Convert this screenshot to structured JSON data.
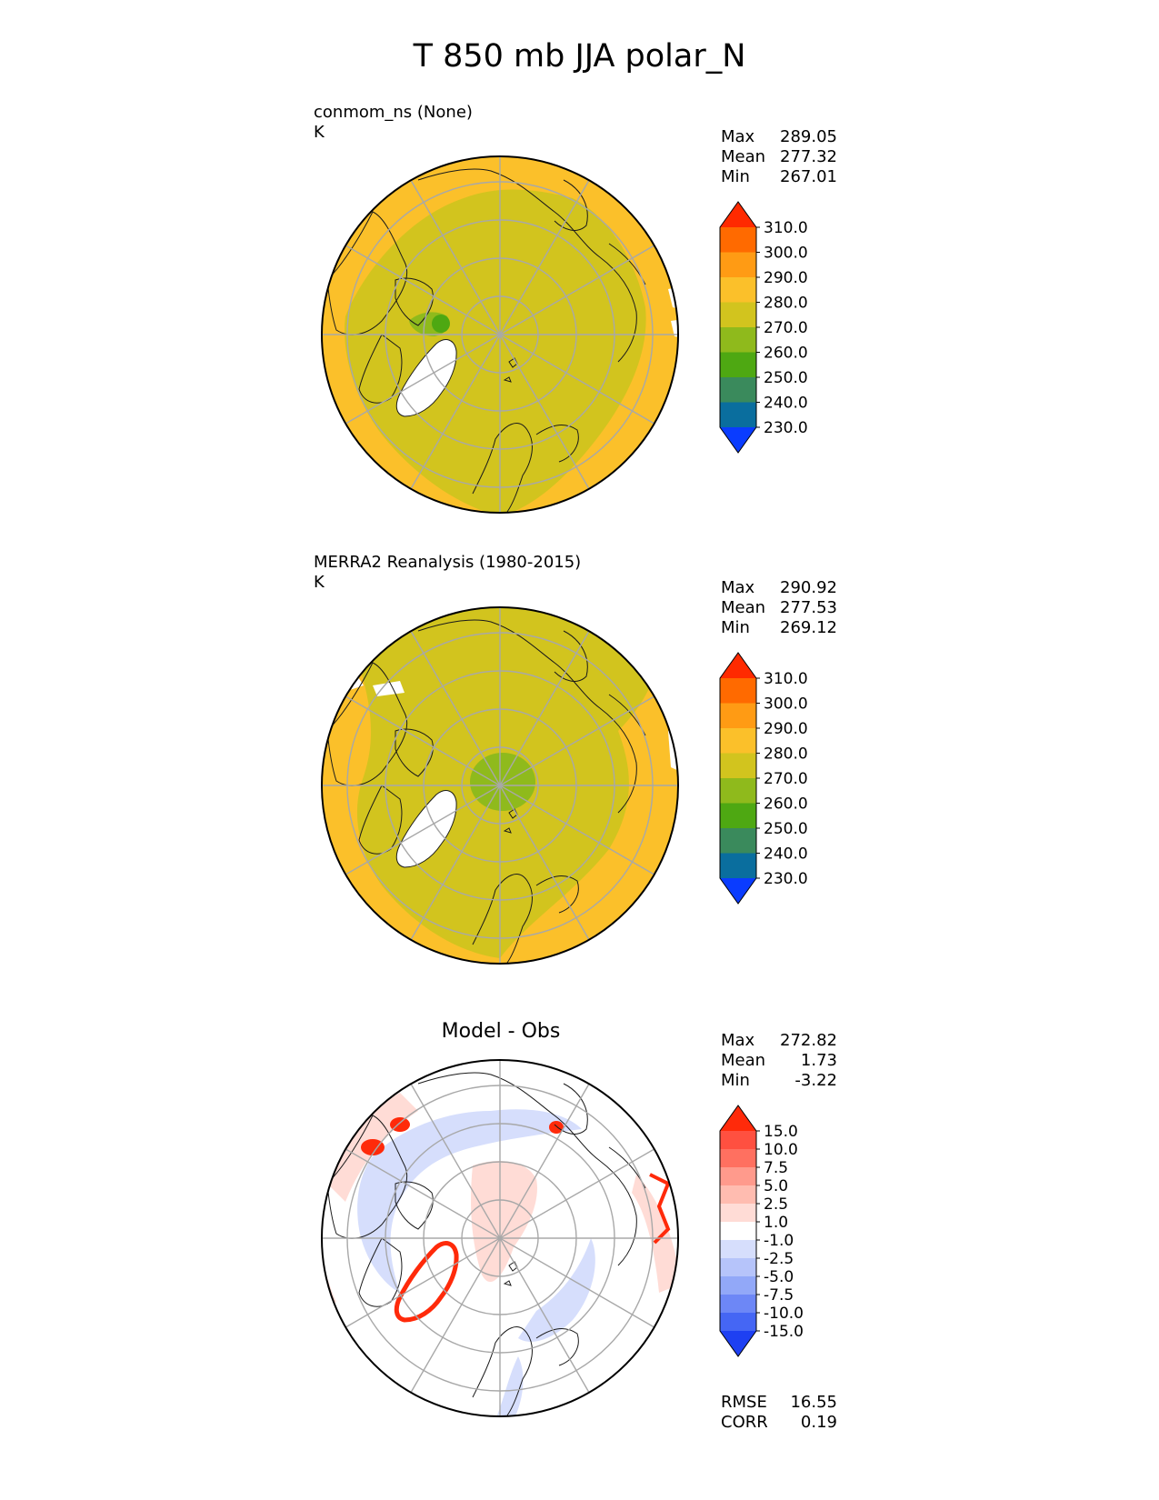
{
  "title": "T 850 mb JJA polar_N",
  "panels": [
    {
      "id": "model",
      "title_line1": "conmom_ns (None)",
      "title_line2": "K",
      "stats": [
        {
          "label": "Max",
          "value": "289.05"
        },
        {
          "label": "Mean",
          "value": "277.32"
        },
        {
          "label": "Min",
          "value": "267.01"
        }
      ]
    },
    {
      "id": "obs",
      "title_line1": "MERRA2 Reanalysis (1980-2015)",
      "title_line2": "K",
      "stats": [
        {
          "label": "Max",
          "value": "290.92"
        },
        {
          "label": "Mean",
          "value": "277.53"
        },
        {
          "label": "Min",
          "value": "269.12"
        }
      ]
    },
    {
      "id": "diff",
      "title": "Model - Obs",
      "stats": [
        {
          "label": "Max",
          "value": "272.82"
        },
        {
          "label": "Mean",
          "value": "1.73"
        },
        {
          "label": "Min",
          "value": "-3.22"
        }
      ],
      "metrics": [
        {
          "label": "RMSE",
          "value": "16.55"
        },
        {
          "label": "CORR",
          "value": "0.19"
        }
      ]
    }
  ],
  "chart_data": [
    {
      "type": "heatmap",
      "projection": "north polar stereographic",
      "title": "conmom_ns (None)",
      "units": "K",
      "stats": {
        "max": 289.05,
        "mean": 277.32,
        "min": 267.01
      },
      "colorbar": {
        "ticks": [
          "310.0",
          "300.0",
          "290.0",
          "280.0",
          "270.0",
          "260.0",
          "250.0",
          "240.0",
          "230.0"
        ],
        "colors": [
          "#ff2a00",
          "#ff6a00",
          "#ff9b14",
          "#fbc02a",
          "#d2c41e",
          "#8fba1c",
          "#4ea812",
          "#3a8a5c",
          "#0a6e9e",
          "#0a3cff"
        ],
        "extend": "both"
      }
    },
    {
      "type": "heatmap",
      "projection": "north polar stereographic",
      "title": "MERRA2 Reanalysis (1980-2015)",
      "units": "K",
      "stats": {
        "max": 290.92,
        "mean": 277.53,
        "min": 269.12
      },
      "colorbar": {
        "ticks": [
          "310.0",
          "300.0",
          "290.0",
          "280.0",
          "270.0",
          "260.0",
          "250.0",
          "240.0",
          "230.0"
        ],
        "colors": [
          "#ff2a00",
          "#ff6a00",
          "#ff9b14",
          "#fbc02a",
          "#d2c41e",
          "#8fba1c",
          "#4ea812",
          "#3a8a5c",
          "#0a6e9e",
          "#0a3cff"
        ],
        "extend": "both"
      }
    },
    {
      "type": "heatmap",
      "projection": "north polar stereographic",
      "title": "Model - Obs",
      "stats": {
        "max": 272.82,
        "mean": 1.73,
        "min": -3.22
      },
      "metrics": {
        "rmse": 16.55,
        "corr": 0.19
      },
      "colorbar": {
        "ticks": [
          "15.0",
          "10.0",
          "7.5",
          "5.0",
          "2.5",
          "1.0",
          "-1.0",
          "-2.5",
          "-5.0",
          "-7.5",
          "-10.0",
          "-15.0"
        ],
        "colors": [
          "#ff2a0a",
          "#ff5040",
          "#ff7060",
          "#ff9a8c",
          "#ffbcb0",
          "#ffdcd6",
          "#ffffff",
          "#d6defc",
          "#b6c4fa",
          "#92a8f8",
          "#6d87f6",
          "#4566f4",
          "#1e40f2"
        ],
        "extend": "both"
      }
    }
  ]
}
